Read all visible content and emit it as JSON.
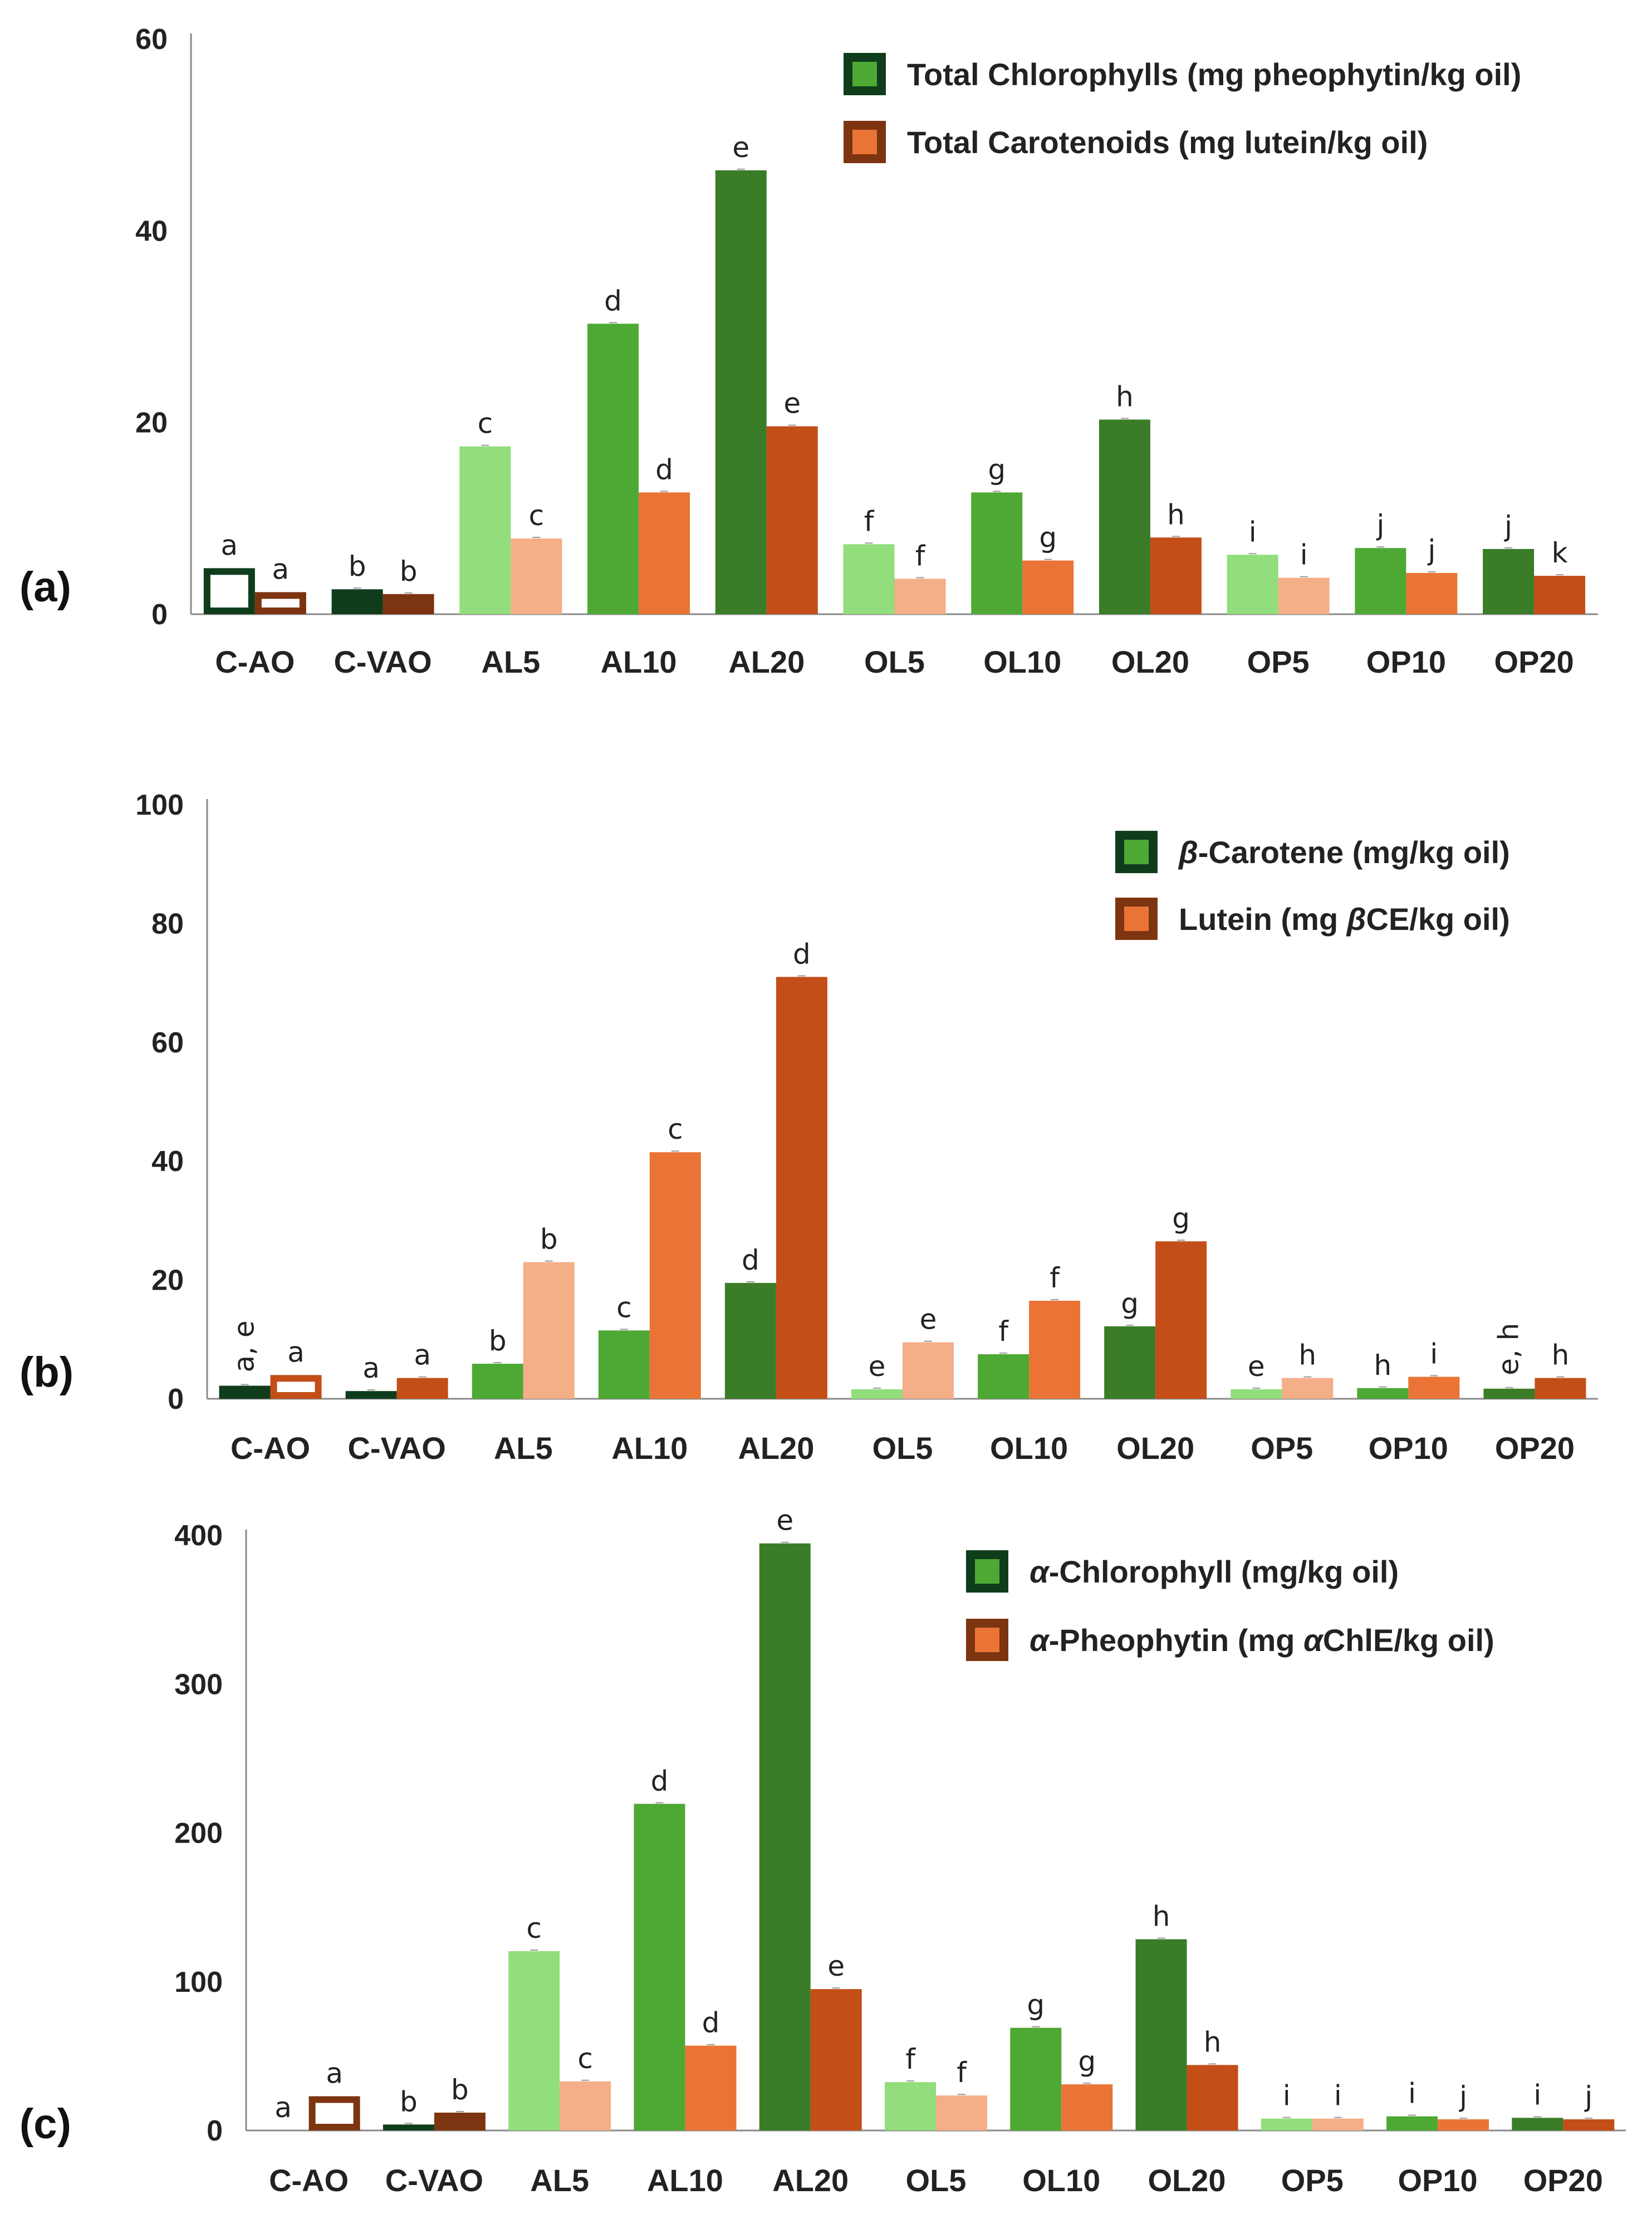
{
  "chart_data": [
    {
      "type": "bar",
      "panel_label": "(a)",
      "categories": [
        "C-AO",
        "C-VAO",
        "AL5",
        "AL10",
        "AL20",
        "OL5",
        "OL10",
        "OL20",
        "OP5",
        "OP10",
        "OP20"
      ],
      "ylim": [
        0,
        60
      ],
      "yticks": [
        "0",
        "20",
        "40",
        "60"
      ],
      "legend_position": "top-right",
      "grid": false,
      "series": [
        {
          "name": "Total Chlorophylls (mg pheophytin/kg oil)",
          "values": [
            4.8,
            2.6,
            17.5,
            30.3,
            46.3,
            7.3,
            12.7,
            20.3,
            6.2,
            6.9,
            6.8
          ],
          "labels": [
            "a",
            "b",
            "c",
            "d",
            "e",
            "f",
            "g",
            "h",
            "i",
            "j",
            "j"
          ],
          "colors": [
            "#ffffff",
            "#0f3d1c",
            "#92dd7c",
            "#4ea934",
            "#3a7c28",
            "#92dd7c",
            "#4ea934",
            "#3a7c28",
            "#92dd7c",
            "#4ea934",
            "#3a7c28"
          ],
          "border_colors": [
            "#0f3d1c",
            "#0f3d1c",
            "#92dd7c",
            "#4ea934",
            "#3a7c28",
            "#92dd7c",
            "#4ea934",
            "#3a7c28",
            "#92dd7c",
            "#4ea934",
            "#3a7c28"
          ],
          "legend_fill": "#4ea934",
          "legend_border": "#0f3d1c"
        },
        {
          "name": "Total Carotenoids (mg lutein/kg oil)",
          "values": [
            2.3,
            2.1,
            7.9,
            12.7,
            19.6,
            3.7,
            5.6,
            8.0,
            3.8,
            4.3,
            4.0
          ],
          "labels": [
            "a",
            "b",
            "c",
            "d",
            "e",
            "f",
            "g",
            "h",
            "i",
            "j",
            "k"
          ],
          "colors": [
            "#ffffff",
            "#7d3410",
            "#f4ae88",
            "#ea7435",
            "#c34e18",
            "#f4ae88",
            "#ea7435",
            "#c34e18",
            "#f4ae88",
            "#ea7435",
            "#c34e18"
          ],
          "border_colors": [
            "#7d3410",
            "#7d3410",
            "#f4ae88",
            "#ea7435",
            "#c34e18",
            "#f4ae88",
            "#ea7435",
            "#c34e18",
            "#f4ae88",
            "#ea7435",
            "#c34e18"
          ],
          "legend_fill": "#ea7435",
          "legend_border": "#7d3410"
        }
      ]
    },
    {
      "type": "bar",
      "panel_label": "(b)",
      "categories": [
        "C-AO",
        "C-VAO",
        "AL5",
        "AL10",
        "AL20",
        "OL5",
        "OL10",
        "OL20",
        "OP5",
        "OP10",
        "OP20"
      ],
      "ylim": [
        0,
        100
      ],
      "yticks": [
        "0",
        "20",
        "40",
        "60",
        "80",
        "100"
      ],
      "legend_position": "top-right",
      "grid": false,
      "series": [
        {
          "name": "β-Carotene (mg/kg oil)",
          "name_italic": "β",
          "name_rest": "-Carotene (mg/kg oil)",
          "values": [
            2.2,
            1.3,
            5.9,
            11.5,
            19.5,
            1.6,
            7.5,
            12.2,
            1.6,
            1.8,
            1.7
          ],
          "labels": [
            "a, e",
            "a",
            "b",
            "c",
            "d",
            "e",
            "f",
            "g",
            "e",
            "h",
            "e, h"
          ],
          "rotated_labels": [
            true,
            false,
            false,
            false,
            false,
            false,
            false,
            false,
            false,
            false,
            true
          ],
          "colors": [
            "#0f3d1c",
            "#0f3d1c",
            "#4ea934",
            "#4ea934",
            "#3a7c28",
            "#92dd7c",
            "#4ea934",
            "#3a7c28",
            "#92dd7c",
            "#4ea934",
            "#3a7c28"
          ],
          "border_colors": [
            "#0f3d1c",
            "#0f3d1c",
            "#4ea934",
            "#4ea934",
            "#3a7c28",
            "#92dd7c",
            "#4ea934",
            "#3a7c28",
            "#92dd7c",
            "#4ea934",
            "#3a7c28"
          ],
          "legend_fill": "#4ea934",
          "legend_border": "#0f3d1c"
        },
        {
          "name": "Lutein (mg βCE/kg oil)",
          "name_pre": "Lutein (mg ",
          "name_italic": "β",
          "name_post": "CE/kg oil)",
          "values": [
            4.0,
            3.5,
            23.0,
            41.5,
            71.0,
            9.5,
            16.5,
            26.5,
            3.5,
            3.7,
            3.5
          ],
          "labels": [
            "a",
            "a",
            "b",
            "c",
            "d",
            "e",
            "f",
            "g",
            "h",
            "i",
            "h"
          ],
          "colors": [
            "#ffffff",
            "#c34e18",
            "#f4ae88",
            "#ea7435",
            "#c34e18",
            "#f4ae88",
            "#ea7435",
            "#c34e18",
            "#f4ae88",
            "#ea7435",
            "#c34e18"
          ],
          "border_colors": [
            "#c34e18",
            "#c34e18",
            "#f4ae88",
            "#ea7435",
            "#c34e18",
            "#f4ae88",
            "#ea7435",
            "#c34e18",
            "#f4ae88",
            "#ea7435",
            "#c34e18"
          ],
          "legend_fill": "#ea7435",
          "legend_border": "#7d3410"
        }
      ]
    },
    {
      "type": "bar",
      "panel_label": "(c)",
      "categories": [
        "C-AO",
        "C-VAO",
        "AL5",
        "AL10",
        "AL20",
        "OL5",
        "OL10",
        "OL20",
        "OP5",
        "OP10",
        "OP20"
      ],
      "ylim": [
        0,
        400
      ],
      "yticks": [
        "0",
        "100",
        "200",
        "300",
        "400"
      ],
      "legend_position": "top-right",
      "grid": false,
      "series": [
        {
          "name": "α-Chlorophyll (mg/kg oil)",
          "name_italic": "α",
          "name_rest": "-Chlorophyll (mg/kg oil)",
          "values": [
            0.0,
            4.0,
            120.5,
            219.5,
            394.5,
            32.5,
            69.0,
            128.5,
            8.0,
            9.5,
            8.5
          ],
          "labels": [
            "a",
            "b",
            "c",
            "d",
            "e",
            "f",
            "g",
            "h",
            "i",
            "i",
            "i"
          ],
          "colors": [
            "#ffffff",
            "#0f3d1c",
            "#92dd7c",
            "#4ea934",
            "#3a7c28",
            "#92dd7c",
            "#4ea934",
            "#3a7c28",
            "#92dd7c",
            "#4ea934",
            "#3a7c28"
          ],
          "border_colors": [
            "#0f3d1c",
            "#0f3d1c",
            "#92dd7c",
            "#4ea934",
            "#3a7c28",
            "#92dd7c",
            "#4ea934",
            "#3a7c28",
            "#92dd7c",
            "#4ea934",
            "#3a7c28"
          ],
          "legend_fill": "#4ea934",
          "legend_border": "#0f3d1c"
        },
        {
          "name": "α-Pheophytin (mg αChlE/kg oil)",
          "name_italic": "α",
          "name_mid": "-Pheophytin (mg ",
          "name_italic2": "α",
          "name_post": "ChlE/kg oil)",
          "values": [
            23.0,
            12.0,
            33.0,
            57.0,
            95.0,
            23.5,
            31.0,
            44.0,
            8.0,
            7.5,
            7.5
          ],
          "labels": [
            "a",
            "b",
            "c",
            "d",
            "e",
            "f",
            "g",
            "h",
            "i",
            "j",
            "j"
          ],
          "colors": [
            "#ffffff",
            "#7d3410",
            "#f4ae88",
            "#ea7435",
            "#c34e18",
            "#f4ae88",
            "#ea7435",
            "#c34e18",
            "#f4ae88",
            "#ea7435",
            "#c34e18"
          ],
          "border_colors": [
            "#7d3410",
            "#7d3410",
            "#f4ae88",
            "#ea7435",
            "#c34e18",
            "#f4ae88",
            "#ea7435",
            "#c34e18",
            "#f4ae88",
            "#ea7435",
            "#c34e18"
          ],
          "legend_fill": "#ea7435",
          "legend_border": "#7d3410"
        }
      ]
    }
  ]
}
